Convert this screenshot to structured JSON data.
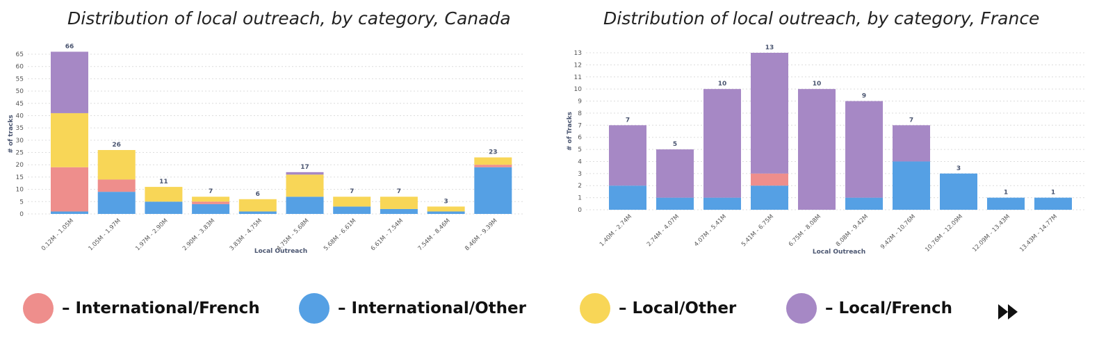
{
  "colors": {
    "International/French": "#ee8e8c",
    "International/Other": "#55a0e4",
    "Local/Other": "#f8d657",
    "Local/French": "#a688c5",
    "grid": "#dcdcdc"
  },
  "legend": [
    {
      "label": "– International/French",
      "series": "International/French"
    },
    {
      "label": "– International/Other",
      "series": "International/Other"
    },
    {
      "label": "– Local/Other",
      "series": "Local/Other"
    },
    {
      "label": "– Local/French",
      "series": "Local/French"
    }
  ],
  "nav": {
    "icon": "fast-forward-icon"
  },
  "chart_data": [
    {
      "type": "bar",
      "stacked": true,
      "title": "Distribution of local outreach, by category, Canada",
      "xlabel": "Local Outreach",
      "ylabel": "# of tracks",
      "ylim": [
        0,
        65
      ],
      "yticks": [
        0,
        5,
        10,
        15,
        20,
        25,
        30,
        35,
        40,
        45,
        50,
        55,
        60,
        65
      ],
      "grid": true,
      "categories": [
        "0.12M - 1.05M",
        "1.05M - 1.97M",
        "1.97M - 2.90M",
        "2.90M - 3.83M",
        "3.83M - 4.75M",
        "4.75M - 5.68M",
        "5.68M - 6.61M",
        "6.61M - 7.54M",
        "7.54M - 8.46M",
        "8.46M - 9.39M"
      ],
      "totals": [
        66,
        26,
        11,
        7,
        6,
        17,
        7,
        7,
        3,
        23
      ],
      "series": [
        {
          "name": "International/Other",
          "values": [
            1,
            9,
            5,
            4,
            1,
            7,
            3,
            2,
            1,
            19
          ]
        },
        {
          "name": "International/French",
          "values": [
            18,
            5,
            0,
            1,
            0,
            0,
            0,
            0,
            0,
            1
          ]
        },
        {
          "name": "Local/Other",
          "values": [
            22,
            12,
            6,
            2,
            5,
            9,
            4,
            5,
            2,
            3
          ]
        },
        {
          "name": "Local/French",
          "values": [
            25,
            0,
            0,
            0,
            0,
            1,
            0,
            0,
            0,
            0
          ]
        }
      ]
    },
    {
      "type": "bar",
      "stacked": true,
      "title": "Distribution of local outreach, by category, France",
      "xlabel": "Local Outreach",
      "ylabel": "# of Tracks",
      "ylim": [
        0,
        13
      ],
      "yticks": [
        0,
        1,
        2,
        3,
        4,
        5,
        6,
        7,
        8,
        9,
        10,
        11,
        12,
        13
      ],
      "grid": true,
      "categories": [
        "1.40M - 2.74M",
        "2.74M - 4.07M",
        "4.07M - 5.41M",
        "5.41M - 6.75M",
        "6.75M - 8.08M",
        "8.08M - 9.42M",
        "9.42M - 10.76M",
        "10.76M - 12.09M",
        "12.09M - 13.43M",
        "13.43M - 14.77M"
      ],
      "totals": [
        7,
        5,
        10,
        13,
        10,
        9,
        7,
        3,
        1,
        1
      ],
      "series": [
        {
          "name": "International/Other",
          "values": [
            2,
            1,
            1,
            2,
            0,
            1,
            4,
            3,
            1,
            1
          ]
        },
        {
          "name": "International/French",
          "values": [
            0,
            0,
            0,
            1,
            0,
            0,
            0,
            0,
            0,
            0
          ]
        },
        {
          "name": "Local/Other",
          "values": [
            0,
            0,
            0,
            0,
            0,
            0,
            0,
            0,
            0,
            0
          ]
        },
        {
          "name": "Local/French",
          "values": [
            5,
            4,
            9,
            10,
            10,
            8,
            3,
            0,
            0,
            0
          ]
        }
      ]
    }
  ]
}
